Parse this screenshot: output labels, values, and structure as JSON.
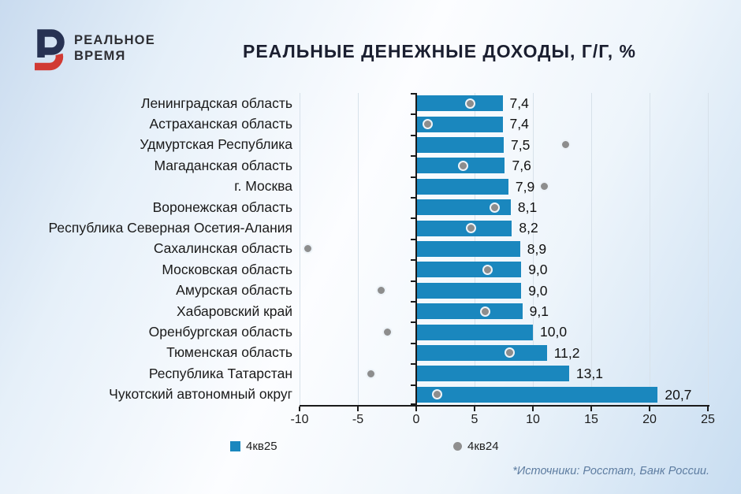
{
  "header": {
    "logo_line1": "РЕАЛЬНОЕ",
    "logo_line2": "ВРЕМЯ",
    "title": "РЕАЛЬНЫЕ ДЕНЕЖНЫЕ ДОХОДЫ, Г/Г, %"
  },
  "chart_data": {
    "type": "bar",
    "orientation": "horizontal",
    "title": "РЕАЛЬНЫЕ ДЕНЕЖНЫЕ ДОХОДЫ, Г/Г, %",
    "xlim": [
      -10,
      25
    ],
    "xticks": [
      -10,
      -5,
      0,
      5,
      10,
      15,
      20,
      25
    ],
    "grid": true,
    "legend_position": "bottom",
    "categories": [
      "Ленинградская область",
      "Астраханская область",
      "Удмуртская Республика",
      "Магаданская область",
      "г. Москва",
      "Воронежская область",
      "Республика Северная Осетия-Алания",
      "Сахалинская область",
      "Московская область",
      "Амурская область",
      "Хабаровский край",
      "Оренбургская область",
      "Тюменская область",
      "Республика Татарстан",
      "Чукотский автономный округ"
    ],
    "series": [
      {
        "name": "4кв25",
        "type": "bar",
        "color": "#1a87be",
        "values": [
          7.4,
          7.4,
          7.5,
          7.6,
          7.9,
          8.1,
          8.2,
          8.9,
          9.0,
          9.0,
          9.1,
          10.0,
          11.2,
          13.1,
          20.7
        ]
      },
      {
        "name": "4кв24",
        "type": "scatter",
        "color": "#8d8d8d",
        "values": [
          4.6,
          1.0,
          12.8,
          4.0,
          11.0,
          6.7,
          4.7,
          -9.3,
          6.1,
          -3.0,
          5.9,
          -2.5,
          8.0,
          -3.9,
          1.8
        ]
      }
    ],
    "value_labels": [
      "7,4",
      "7,4",
      "7,5",
      "7,6",
      "7,9",
      "8,1",
      "8,2",
      "8,9",
      "9,0",
      "9,0",
      "9,1",
      "10,0",
      "11,2",
      "13,1",
      "20,7"
    ]
  },
  "legend": {
    "items": [
      {
        "label": "4кв25",
        "marker": "square",
        "color": "#1a87be"
      },
      {
        "label": "4кв24",
        "marker": "circle",
        "color": "#8d8d8d"
      }
    ]
  },
  "footer": {
    "source": "*Источники: Росстат, Банк России."
  },
  "colors": {
    "bar": "#1a87be",
    "dot": "#8d8d8d",
    "axis": "#1a1a1a",
    "title": "#1b1f30",
    "source_text": "#5d7ca0",
    "logo_navy": "#273253",
    "logo_red": "#d13a33"
  }
}
